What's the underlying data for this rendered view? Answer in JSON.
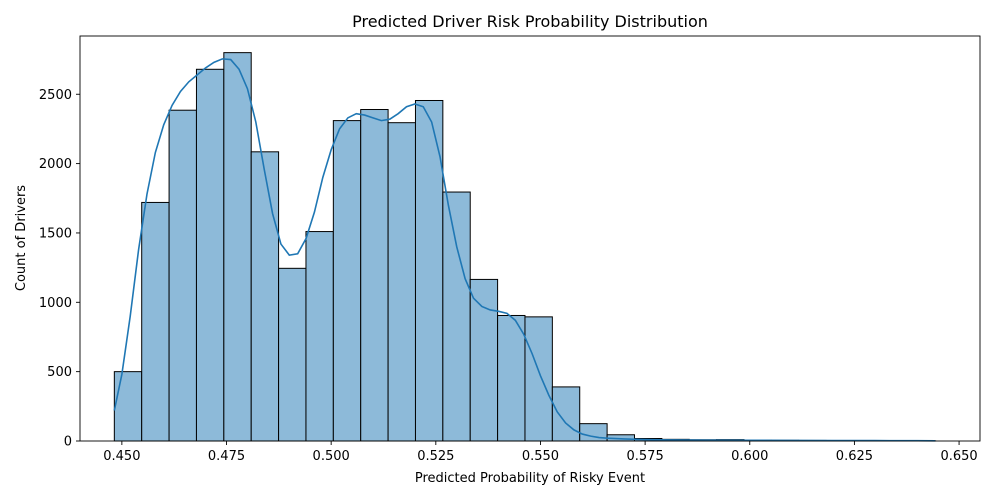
{
  "chart_data": {
    "type": "bar",
    "subtype": "histogram-with-kde",
    "title": "Predicted Driver Risk Probability Distribution",
    "xlabel": "Predicted Probability of Risky Event",
    "ylabel": "Count of Drivers",
    "xlim": [
      0.44,
      0.655
    ],
    "ylim": [
      0,
      2920
    ],
    "x_ticks": [
      0.45,
      0.475,
      0.5,
      0.525,
      0.55,
      0.575,
      0.6,
      0.625,
      0.65
    ],
    "x_tick_labels": [
      "0.450",
      "0.475",
      "0.500",
      "0.525",
      "0.550",
      "0.575",
      "0.600",
      "0.625",
      "0.650"
    ],
    "y_ticks": [
      0,
      500,
      1000,
      1500,
      2000,
      2500
    ],
    "y_tick_labels": [
      "0",
      "500",
      "1000",
      "1500",
      "2000",
      "2500"
    ],
    "grid": false,
    "legend": false,
    "colors": {
      "bar_fill": "#8dbad9",
      "bar_edge": "#000000",
      "kde_line": "#1f77b4"
    },
    "bins": {
      "start": 0.4482,
      "width": 0.00654,
      "counts": [
        500,
        1720,
        2385,
        2680,
        2800,
        2085,
        1245,
        1510,
        2310,
        2390,
        2295,
        2455,
        1795,
        1165,
        905,
        895,
        390,
        125,
        45,
        18,
        12,
        9,
        10,
        6,
        5,
        4,
        3,
        3,
        2,
        1
      ]
    },
    "kde": {
      "x": [
        0.4482,
        0.45,
        0.452,
        0.454,
        0.456,
        0.458,
        0.46,
        0.462,
        0.464,
        0.466,
        0.468,
        0.47,
        0.472,
        0.474,
        0.476,
        0.478,
        0.48,
        0.482,
        0.484,
        0.486,
        0.488,
        0.49,
        0.492,
        0.494,
        0.496,
        0.498,
        0.5,
        0.502,
        0.504,
        0.506,
        0.508,
        0.51,
        0.512,
        0.514,
        0.516,
        0.518,
        0.52,
        0.522,
        0.524,
        0.526,
        0.528,
        0.53,
        0.532,
        0.534,
        0.536,
        0.538,
        0.54,
        0.542,
        0.544,
        0.546,
        0.548,
        0.55,
        0.552,
        0.554,
        0.556,
        0.558,
        0.56,
        0.562,
        0.564,
        0.566,
        0.57,
        0.575,
        0.58,
        0.59,
        0.6,
        0.61,
        0.62,
        0.63,
        0.64,
        0.6443
      ],
      "y": [
        220,
        480,
        900,
        1380,
        1780,
        2080,
        2280,
        2420,
        2520,
        2590,
        2640,
        2690,
        2730,
        2755,
        2750,
        2680,
        2540,
        2300,
        1960,
        1640,
        1420,
        1340,
        1350,
        1460,
        1650,
        1900,
        2100,
        2250,
        2330,
        2360,
        2350,
        2330,
        2310,
        2320,
        2360,
        2410,
        2430,
        2410,
        2300,
        2050,
        1700,
        1400,
        1170,
        1030,
        970,
        945,
        935,
        920,
        870,
        770,
        630,
        470,
        330,
        210,
        130,
        80,
        50,
        35,
        25,
        20,
        15,
        10,
        8,
        6,
        5,
        4,
        3,
        3,
        2,
        1
      ]
    }
  }
}
